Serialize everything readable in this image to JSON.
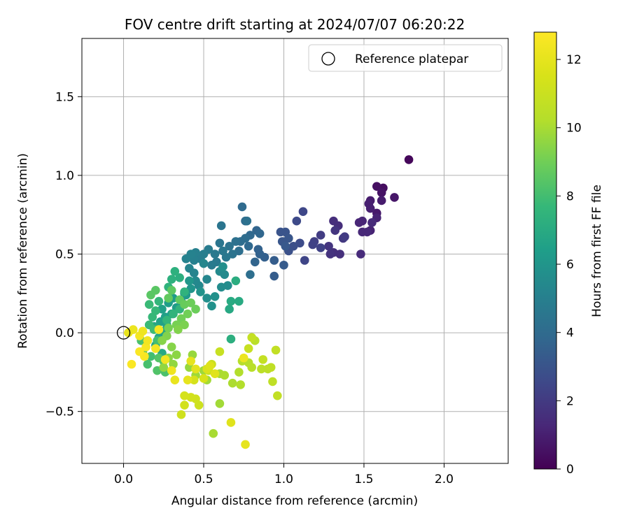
{
  "chart_data": {
    "type": "scatter",
    "title": "FOV centre drift starting at 2024/07/07 06:20:22",
    "xlabel": "Angular distance from reference (arcmin)",
    "ylabel": "Rotation from reference (arcmin)",
    "xlim": [
      -0.26,
      2.4
    ],
    "ylim": [
      -0.83,
      1.87
    ],
    "xticks": [
      0.0,
      0.5,
      1.0,
      1.5,
      2.0
    ],
    "xtick_labels": [
      "0.0",
      "0.5",
      "1.0",
      "1.5",
      "2.0"
    ],
    "yticks": [
      -0.5,
      0.0,
      0.5,
      1.0,
      1.5
    ],
    "ytick_labels": [
      "−0.5",
      "0.0",
      "0.5",
      "1.0",
      "1.5"
    ],
    "grid": true,
    "colormap": "viridis",
    "colorbar": {
      "label": "Hours from first FF file",
      "range": [
        0,
        12.8
      ],
      "ticks": [
        0,
        2,
        4,
        6,
        8,
        10,
        12
      ],
      "tick_labels": [
        "0",
        "2",
        "4",
        "6",
        "8",
        "10",
        "12"
      ]
    },
    "legend": {
      "position": "top-right",
      "entries": [
        {
          "label": "Reference platepar",
          "marker": "open-circle"
        }
      ]
    },
    "reference_point": {
      "x": 0.0,
      "y": 0.0
    },
    "points": [
      [
        1.78,
        1.1,
        0.2
      ],
      [
        1.62,
        0.92,
        0.4
      ],
      [
        1.58,
        0.93,
        0.5
      ],
      [
        1.61,
        0.89,
        0.6
      ],
      [
        1.69,
        0.86,
        0.7
      ],
      [
        1.58,
        0.76,
        0.8
      ],
      [
        1.61,
        0.84,
        0.9
      ],
      [
        1.54,
        0.84,
        0.9
      ],
      [
        1.53,
        0.82,
        1.0
      ],
      [
        1.54,
        0.79,
        1.0
      ],
      [
        1.58,
        0.73,
        1.1
      ],
      [
        1.54,
        0.65,
        1.1
      ],
      [
        1.49,
        0.71,
        1.2
      ],
      [
        1.47,
        0.7,
        1.2
      ],
      [
        1.49,
        0.64,
        1.3
      ],
      [
        1.52,
        0.64,
        1.3
      ],
      [
        1.48,
        0.5,
        1.4
      ],
      [
        1.55,
        0.7,
        1.4
      ],
      [
        1.31,
        0.71,
        1.5
      ],
      [
        1.34,
        0.68,
        1.5
      ],
      [
        1.31,
        0.51,
        1.6
      ],
      [
        1.35,
        0.5,
        1.6
      ],
      [
        1.29,
        0.5,
        1.7
      ],
      [
        1.28,
        0.55,
        1.8
      ],
      [
        1.32,
        0.65,
        1.8
      ],
      [
        1.37,
        0.6,
        1.9
      ],
      [
        1.38,
        0.61,
        2.0
      ],
      [
        1.23,
        0.62,
        2.1
      ],
      [
        1.19,
        0.58,
        2.2
      ],
      [
        1.23,
        0.54,
        2.3
      ],
      [
        1.18,
        0.56,
        2.3
      ],
      [
        1.13,
        0.46,
        2.4
      ],
      [
        1.12,
        0.77,
        2.5
      ],
      [
        1.08,
        0.71,
        2.6
      ],
      [
        1.1,
        0.57,
        2.7
      ],
      [
        1.06,
        0.55,
        2.8
      ],
      [
        1.03,
        0.52,
        2.9
      ],
      [
        1.01,
        0.64,
        3.0
      ],
      [
        0.98,
        0.64,
        3.0
      ],
      [
        1.03,
        0.6,
        3.1
      ],
      [
        0.99,
        0.58,
        3.1
      ],
      [
        1.01,
        0.55,
        3.2
      ],
      [
        1.0,
        0.43,
        3.3
      ],
      [
        0.94,
        0.36,
        3.4
      ],
      [
        0.94,
        0.46,
        3.4
      ],
      [
        0.88,
        0.48,
        3.5
      ],
      [
        0.85,
        0.5,
        3.6
      ],
      [
        0.84,
        0.53,
        3.6
      ],
      [
        0.82,
        0.45,
        3.7
      ],
      [
        0.83,
        0.65,
        3.7
      ],
      [
        0.85,
        0.63,
        3.8
      ],
      [
        0.78,
        0.55,
        3.9
      ],
      [
        0.79,
        0.62,
        3.9
      ],
      [
        0.76,
        0.71,
        4.0
      ],
      [
        0.74,
        0.8,
        4.0
      ],
      [
        0.76,
        0.6,
        4.1
      ],
      [
        0.73,
        0.58,
        4.1
      ],
      [
        0.79,
        0.37,
        4.2
      ],
      [
        0.72,
        0.52,
        4.2
      ],
      [
        0.77,
        0.71,
        4.3
      ],
      [
        0.7,
        0.58,
        4.3
      ],
      [
        0.68,
        0.5,
        4.4
      ],
      [
        0.66,
        0.55,
        4.4
      ],
      [
        0.61,
        0.68,
        4.5
      ],
      [
        0.6,
        0.57,
        4.5
      ],
      [
        0.62,
        0.52,
        4.6
      ],
      [
        0.64,
        0.48,
        4.6
      ],
      [
        0.58,
        0.45,
        4.7
      ],
      [
        0.57,
        0.5,
        4.7
      ],
      [
        0.53,
        0.53,
        4.8
      ],
      [
        0.55,
        0.43,
        4.8
      ],
      [
        0.5,
        0.5,
        4.9
      ],
      [
        0.48,
        0.47,
        4.9
      ],
      [
        0.45,
        0.51,
        5.0
      ],
      [
        0.44,
        0.46,
        5.0
      ],
      [
        0.42,
        0.5,
        5.1
      ],
      [
        0.39,
        0.47,
        5.1
      ],
      [
        0.41,
        0.41,
        5.2
      ],
      [
        0.44,
        0.38,
        5.2
      ],
      [
        0.5,
        0.44,
        5.3
      ],
      [
        0.52,
        0.34,
        5.3
      ],
      [
        0.47,
        0.3,
        5.4
      ],
      [
        0.45,
        0.33,
        5.4
      ],
      [
        0.6,
        0.39,
        5.5
      ],
      [
        0.63,
        0.37,
        5.5
      ],
      [
        0.61,
        0.29,
        5.6
      ],
      [
        0.65,
        0.3,
        5.6
      ],
      [
        0.62,
        0.42,
        5.7
      ],
      [
        0.52,
        0.22,
        5.7
      ],
      [
        0.55,
        0.17,
        5.8
      ],
      [
        0.57,
        0.23,
        5.8
      ],
      [
        0.48,
        0.26,
        5.9
      ],
      [
        0.42,
        0.28,
        6.0
      ],
      [
        0.38,
        0.25,
        6.0
      ],
      [
        0.41,
        0.33,
        6.1
      ],
      [
        0.39,
        0.24,
        6.2
      ],
      [
        0.36,
        0.2,
        6.2
      ],
      [
        0.33,
        0.16,
        6.3
      ],
      [
        0.31,
        0.22,
        6.3
      ],
      [
        0.28,
        0.19,
        6.4
      ],
      [
        0.3,
        0.12,
        6.4
      ],
      [
        0.26,
        0.1,
        6.5
      ],
      [
        0.24,
        0.15,
        6.5
      ],
      [
        0.27,
        0.05,
        6.6
      ],
      [
        0.23,
        0.07,
        6.6
      ],
      [
        0.25,
        0.01,
        6.7
      ],
      [
        0.22,
        -0.03,
        6.7
      ],
      [
        0.19,
        0.04,
        6.8
      ],
      [
        0.2,
        -0.08,
        6.8
      ],
      [
        0.24,
        -0.13,
        6.9
      ],
      [
        0.66,
        0.15,
        6.9
      ],
      [
        0.67,
        0.2,
        7.0
      ],
      [
        0.72,
        0.2,
        7.0
      ],
      [
        0.7,
        0.33,
        7.1
      ],
      [
        0.67,
        -0.04,
        7.2
      ],
      [
        0.35,
        0.35,
        7.2
      ],
      [
        0.32,
        0.39,
        7.3
      ],
      [
        0.3,
        0.34,
        7.3
      ],
      [
        0.28,
        0.29,
        7.4
      ],
      [
        0.38,
        0.26,
        7.4
      ],
      [
        0.35,
        0.15,
        7.5
      ],
      [
        0.31,
        0.12,
        7.5
      ],
      [
        0.27,
        0.08,
        7.6
      ],
      [
        0.22,
        0.2,
        7.6
      ],
      [
        0.2,
        0.14,
        7.7
      ],
      [
        0.18,
        0.1,
        7.7
      ],
      [
        0.16,
        0.18,
        7.8
      ],
      [
        0.16,
        0.05,
        7.8
      ],
      [
        0.19,
        0.02,
        7.9
      ],
      [
        0.21,
        -0.05,
        8.0
      ],
      [
        0.17,
        -0.15,
        8.0
      ],
      [
        0.15,
        -0.2,
        8.1
      ],
      [
        0.12,
        -0.12,
        8.1
      ],
      [
        0.11,
        -0.05,
        8.2
      ],
      [
        0.26,
        -0.25,
        8.2
      ],
      [
        0.25,
        -0.18,
        8.3
      ],
      [
        0.21,
        -0.24,
        8.3
      ],
      [
        0.22,
        -0.16,
        8.4
      ],
      [
        0.2,
        0.27,
        8.5
      ],
      [
        0.17,
        0.24,
        8.5
      ],
      [
        0.3,
        0.27,
        8.6
      ],
      [
        0.28,
        0.22,
        8.7
      ],
      [
        0.35,
        0.21,
        8.7
      ],
      [
        0.38,
        0.18,
        8.8
      ],
      [
        0.42,
        0.19,
        8.9
      ],
      [
        0.45,
        0.15,
        8.9
      ],
      [
        0.4,
        0.12,
        9.0
      ],
      [
        0.36,
        0.09,
        9.0
      ],
      [
        0.33,
        0.05,
        9.1
      ],
      [
        0.28,
        0.03,
        9.1
      ],
      [
        0.38,
        0.05,
        9.2
      ],
      [
        0.34,
        0.02,
        9.3
      ],
      [
        0.27,
        -0.02,
        9.3
      ],
      [
        0.24,
        -0.05,
        9.4
      ],
      [
        0.3,
        -0.09,
        9.4
      ],
      [
        0.33,
        -0.14,
        9.5
      ],
      [
        0.28,
        -0.16,
        9.5
      ],
      [
        0.31,
        -0.2,
        9.6
      ],
      [
        0.25,
        -0.22,
        9.6
      ],
      [
        0.43,
        -0.14,
        9.7
      ],
      [
        0.41,
        -0.22,
        9.7
      ],
      [
        0.45,
        -0.27,
        9.8
      ],
      [
        0.5,
        -0.24,
        9.8
      ],
      [
        0.52,
        -0.3,
        9.9
      ],
      [
        0.6,
        -0.45,
        9.9
      ],
      [
        0.56,
        -0.64,
        10.0
      ],
      [
        0.6,
        -0.26,
        10.0
      ],
      [
        0.63,
        -0.27,
        10.1
      ],
      [
        0.68,
        -0.32,
        10.1
      ],
      [
        0.72,
        -0.25,
        10.2
      ],
      [
        0.73,
        -0.33,
        10.2
      ],
      [
        0.74,
        -0.18,
        10.3
      ],
      [
        0.78,
        -0.19,
        10.3
      ],
      [
        0.8,
        -0.22,
        10.4
      ],
      [
        0.82,
        -0.05,
        10.4
      ],
      [
        0.86,
        -0.23,
        10.5
      ],
      [
        0.9,
        -0.23,
        10.5
      ],
      [
        0.92,
        -0.22,
        10.6
      ],
      [
        0.93,
        -0.31,
        10.6
      ],
      [
        0.96,
        -0.4,
        10.7
      ],
      [
        0.95,
        -0.11,
        10.7
      ],
      [
        0.87,
        -0.17,
        10.8
      ],
      [
        0.8,
        -0.03,
        10.8
      ],
      [
        0.78,
        -0.1,
        10.9
      ],
      [
        0.6,
        -0.12,
        10.9
      ],
      [
        0.55,
        -0.2,
        11.0
      ],
      [
        0.53,
        -0.24,
        11.0
      ],
      [
        0.47,
        -0.46,
        11.1
      ],
      [
        0.45,
        -0.42,
        11.2
      ],
      [
        0.42,
        -0.41,
        11.3
      ],
      [
        0.38,
        -0.4,
        11.4
      ],
      [
        0.36,
        -0.52,
        11.2
      ],
      [
        0.38,
        -0.46,
        11.3
      ],
      [
        0.44,
        -0.3,
        11.4
      ],
      [
        0.5,
        -0.29,
        11.5
      ],
      [
        0.52,
        -0.23,
        11.6
      ],
      [
        0.54,
        -0.21,
        11.7
      ],
      [
        0.57,
        -0.26,
        11.8
      ],
      [
        0.45,
        -0.23,
        11.9
      ],
      [
        0.4,
        -0.3,
        12.0
      ],
      [
        0.67,
        -0.57,
        11.8
      ],
      [
        0.76,
        -0.71,
        12.0
      ],
      [
        0.75,
        -0.16,
        12.2
      ],
      [
        0.32,
        -0.3,
        12.1
      ],
      [
        0.3,
        -0.24,
        12.3
      ],
      [
        0.26,
        -0.17,
        12.4
      ],
      [
        0.2,
        -0.1,
        12.5
      ],
      [
        0.22,
        0.02,
        12.5
      ],
      [
        0.14,
        -0.09,
        12.6
      ],
      [
        0.13,
        -0.15,
        12.6
      ],
      [
        0.1,
        -0.12,
        12.7
      ],
      [
        0.05,
        -0.2,
        12.7
      ],
      [
        0.1,
        -0.02,
        12.5
      ],
      [
        0.15,
        -0.05,
        12.4
      ],
      [
        0.12,
        0.01,
        12.3
      ],
      [
        0.06,
        0.02,
        12.2
      ],
      [
        0.03,
        0.0,
        12.1
      ],
      [
        0.42,
        -0.18,
        12.0
      ]
    ]
  }
}
